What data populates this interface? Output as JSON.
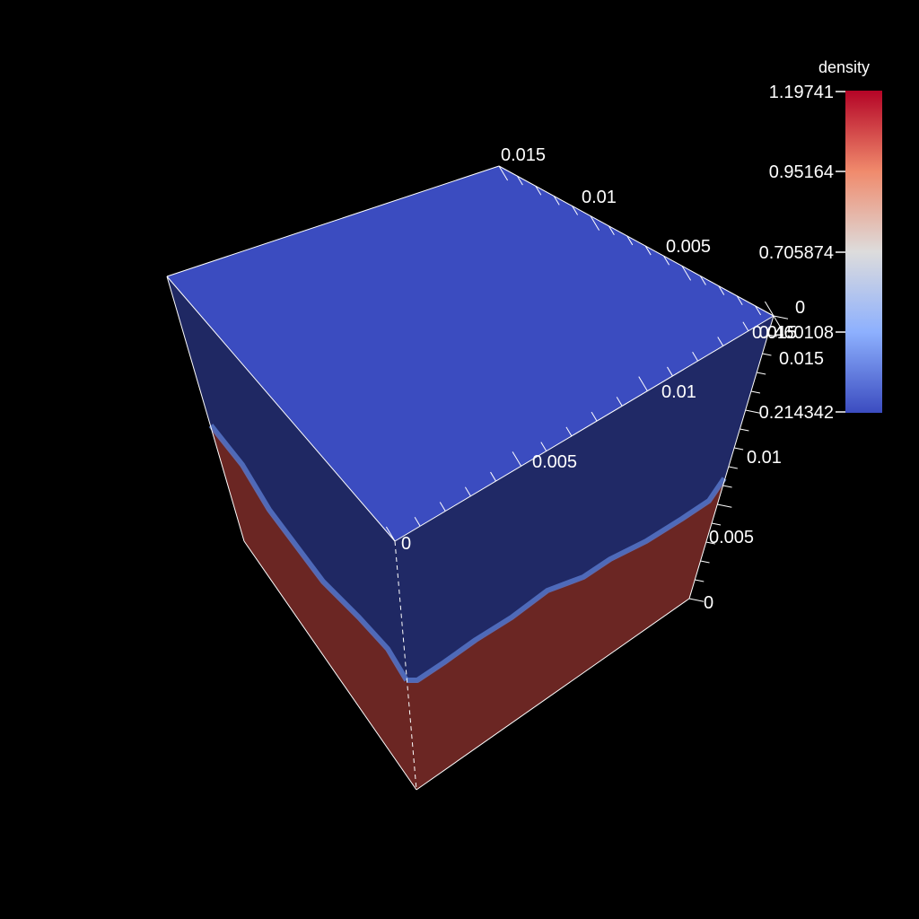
{
  "scene": {
    "background": "#000000",
    "face_colors": {
      "top": "#3b4cc0",
      "front_upper": "#202966",
      "front_lower": "#6b2623",
      "left_upper": "#1f2863",
      "left_lower": "#6b2623",
      "interface": "#5a7bd0",
      "edge": "#ffffff"
    }
  },
  "axes": {
    "top_back_ticks": [
      "0.015",
      "0.01",
      "0.005",
      "0"
    ],
    "top_front_ticks": [
      "0",
      "0.005",
      "0.01",
      "0.015"
    ],
    "vertical_ticks": [
      "0",
      "0.005",
      "0.01",
      "0.015"
    ]
  },
  "legend": {
    "title": "density",
    "colormap": "Cool to Warm",
    "colors": [
      "#b40426",
      "#f08a6c",
      "#dddcdc",
      "#8db0fe",
      "#3b4cc0"
    ],
    "labels": [
      "1.19741",
      "0.95164",
      "0.705874",
      "0.460108",
      "0.214342"
    ]
  }
}
